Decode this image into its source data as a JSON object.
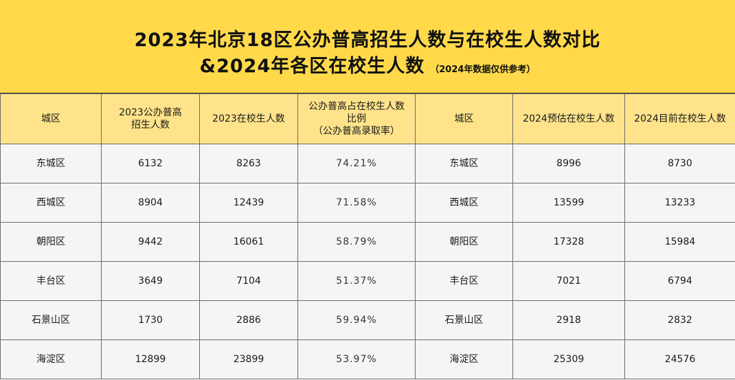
{
  "title": {
    "line1": "2023年北京18区公办普高招生人数与在校生人数对比",
    "line2": "&2024年各区在校生人数",
    "note": "（2024年数据仅供参考）"
  },
  "table": {
    "headers": [
      "城区",
      "2023公办普高\n招生人数",
      "2023在校生人数",
      "公办普高占在校生人数\n比例\n（公办普高录取率）",
      "城区",
      "2024预估在校生人数",
      "2024目前在校生人数"
    ],
    "rows": [
      [
        "东城区",
        "6132",
        "8263",
        "74.21%",
        "东城区",
        "8996",
        "8730"
      ],
      [
        "西城区",
        "8904",
        "12439",
        "71.58%",
        "西城区",
        "13599",
        "13233"
      ],
      [
        "朝阳区",
        "9442",
        "16061",
        "58.79%",
        "朝阳区",
        "17328",
        "15984"
      ],
      [
        "丰台区",
        "3649",
        "7104",
        "51.37%",
        "丰台区",
        "7021",
        "6794"
      ],
      [
        "石景山区",
        "1730",
        "2886",
        "59.94%",
        "石景山区",
        "2918",
        "2832"
      ],
      [
        "海淀区",
        "12899",
        "23899",
        "53.97%",
        "海淀区",
        "25309",
        "24576"
      ]
    ]
  },
  "colors": {
    "title_bg": "#ffd94a",
    "header_bg": "#ffe38a",
    "cell_bg": "#f5f5f5",
    "border": "#6b6b6b"
  }
}
